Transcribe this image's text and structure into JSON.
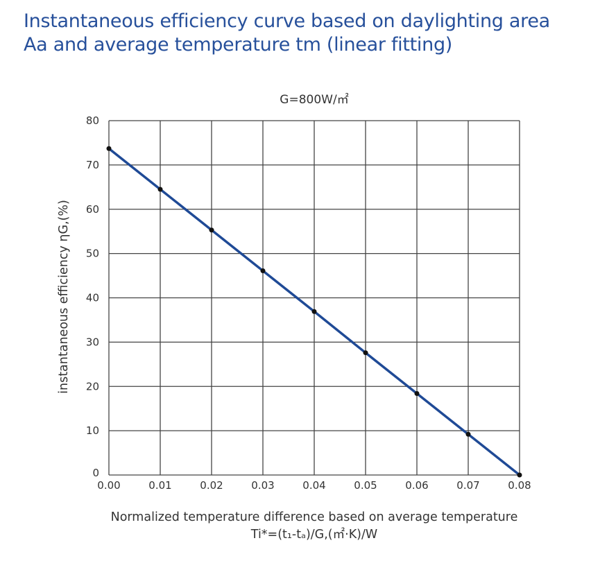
{
  "title_lines": [
    "Instantaneous efficiency curve based on daylighting area",
    "Aa and average temperature tm (linear fitting)"
  ],
  "chart_data": {
    "type": "line",
    "title": "G=800W/㎡",
    "xlabel": "Normalized temperature difference based on average temperature",
    "xlabel2": "Ti*=(t₁-tₐ)/G,(㎡·K)/W",
    "ylabel": "instantaneous efficiency  ηG,(%)",
    "xlim": [
      0,
      0.08
    ],
    "ylim": [
      0,
      80
    ],
    "grid": true,
    "x_ticks": [
      "0.00",
      "0.01",
      "0.02",
      "0.03",
      "0.04",
      "0.05",
      "0.06",
      "0.07",
      "0.08"
    ],
    "y_ticks": [
      "0",
      "10",
      "20",
      "30",
      "40",
      "50",
      "60",
      "70",
      "80"
    ],
    "x": [
      0,
      0.01,
      0.02,
      0.03,
      0.04,
      0.05,
      0.06,
      0.07,
      0.08
    ],
    "y": [
      73.7,
      64.5,
      55.3,
      46.1,
      36.9,
      27.6,
      18.4,
      9.2,
      0
    ],
    "line_color": "#1f4a96",
    "marker_color": "#111111"
  }
}
